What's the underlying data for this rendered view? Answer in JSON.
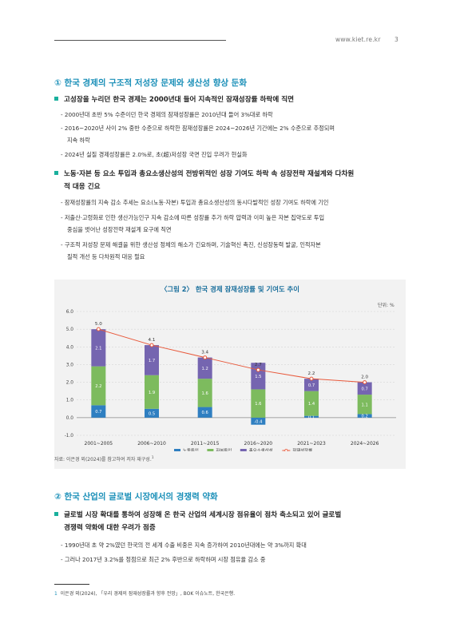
{
  "header": {
    "site": "www.kiet.re.kr",
    "page": "3"
  },
  "section1": {
    "title": "① 한국 경제의 구조적 저성장 문제와 생산성 향상 둔화",
    "b1": "고성장을 누리던 한국 경제는 2000년대 들어 지속적인 잠재성장률 하락에 직면",
    "b1_d1": "- 2000년대 초반 5% 수준이던 한국 경제의 잠재성장률은 2010년대 들어 3%대로 하락",
    "b1_d2a": "- 2016~2020년 사이 2% 중반 수준으로 하락한 잠재성장률은 2024~2026년 기간에는 2% 수준으로 추정되며",
    "b1_d2b": "지속 하락",
    "b1_d3": "- 2024년 실질 경제성장률은 2.0%로, 초(超)저성장 국면 진입 우려가 현실화",
    "b2a": "노동·자본 등 요소 투입과 총요소생산성의 전방위적인 성장 기여도 하락 속 성장전략 재설계와 다차원",
    "b2b": "적 대응 긴요",
    "b2_d1": "- 잠재성장률의 지속 감소 추세는 요소(노동·자본) 투입과 총요소생산성의 동시다발적인 성장 기여도 하락에 기인",
    "b2_d2a": "- 저출산·고령화로 인한 생산가능인구 지속 감소에 따른 성장률 추가 하락 압력과 이미 높은 자본 집약도로 투입",
    "b2_d2b": "중심을 벗어난 성장전략 재설계 요구에 직면",
    "b2_d3a": "- 구조적 저성장 문제 해결을 위한 생산성 정체의 해소가 긴요하며, 기술혁신 촉진, 신성장동력 발굴, 인적자본",
    "b2_d3b": "질적 개선 등 다차원적 대응 필요"
  },
  "figure": {
    "title": "〈그림 2〉 한국 경제 잠재성장률 및 기여도 추이",
    "unit": "단위: %",
    "source": "자료: 이은경 외(2024)를 참고하여 저자 재구성.",
    "source_sup": "1"
  },
  "chart_data": {
    "type": "bar",
    "stacked": true,
    "categories": [
      "2001~2005",
      "2006~2010",
      "2011~2015",
      "2016~2020",
      "2021~2023",
      "2024~2026"
    ],
    "series": [
      {
        "name": "노동투입",
        "values": [
          0.7,
          0.5,
          0.6,
          -0.4,
          0.1,
          0.2
        ],
        "color": "#2f7fc1"
      },
      {
        "name": "자본투입",
        "values": [
          2.2,
          1.9,
          1.6,
          1.6,
          1.4,
          1.1
        ],
        "color": "#7dbb5e"
      },
      {
        "name": "총요소생산성",
        "values": [
          2.1,
          1.7,
          1.2,
          1.5,
          0.7,
          0.7
        ],
        "color": "#7565b0"
      }
    ],
    "line": {
      "name": "잠재성장률",
      "values": [
        5.0,
        4.1,
        3.4,
        2.7,
        2.2,
        2.0
      ],
      "color": "#e8593b"
    },
    "value_labels": {
      "노동투입": [
        "0.7",
        "0.5",
        "0.6",
        "-0.4",
        "0.1",
        "0.2"
      ],
      "자본투입": [
        "2.2",
        "1.9",
        "1.6",
        "1.6",
        "1.4",
        "1.1"
      ],
      "총요소생산성": [
        "2.1",
        "1.7",
        "1.2",
        "1.5",
        "0.7",
        "0.7"
      ],
      "잠재성장률": [
        "5.0",
        "4.1",
        "3.4",
        "2.7",
        "2.2",
        "2.0"
      ]
    },
    "yticks": [
      "6.0",
      "5.0",
      "4.0",
      "3.0",
      "2.0",
      "1.0",
      "0.0",
      "-1.0"
    ],
    "ylim": [
      -1,
      6
    ],
    "grid": true,
    "legend_position": "bottom"
  },
  "section2": {
    "title": "② 한국 산업의 글로벌 시장에서의 경쟁력 약화",
    "b1a": "글로벌 시장 확대를 통하여 성장해 온 한국 산업의 세계시장 점유율이 점차 축소되고 있어 글로벌",
    "b1b": "경쟁력 약화에 대한 우려가 점증",
    "b1_d1": "- 1990년대 초 약 2%였던 한국의 전 세계 수출 비중은 지속 증가하여 2010년대에는 약 3%까지 확대",
    "b1_d2": "- 그러나 2017년 3.2%를 정점으로 최근 2% 후반으로 하락하며 시장 점유율 감소 중"
  },
  "footnote": {
    "num": "1",
    "text": "이은경 외(2024), 「우리 경제의 잠재성장률과 향후 전망」, BOK 이슈노트, 한국은행."
  }
}
